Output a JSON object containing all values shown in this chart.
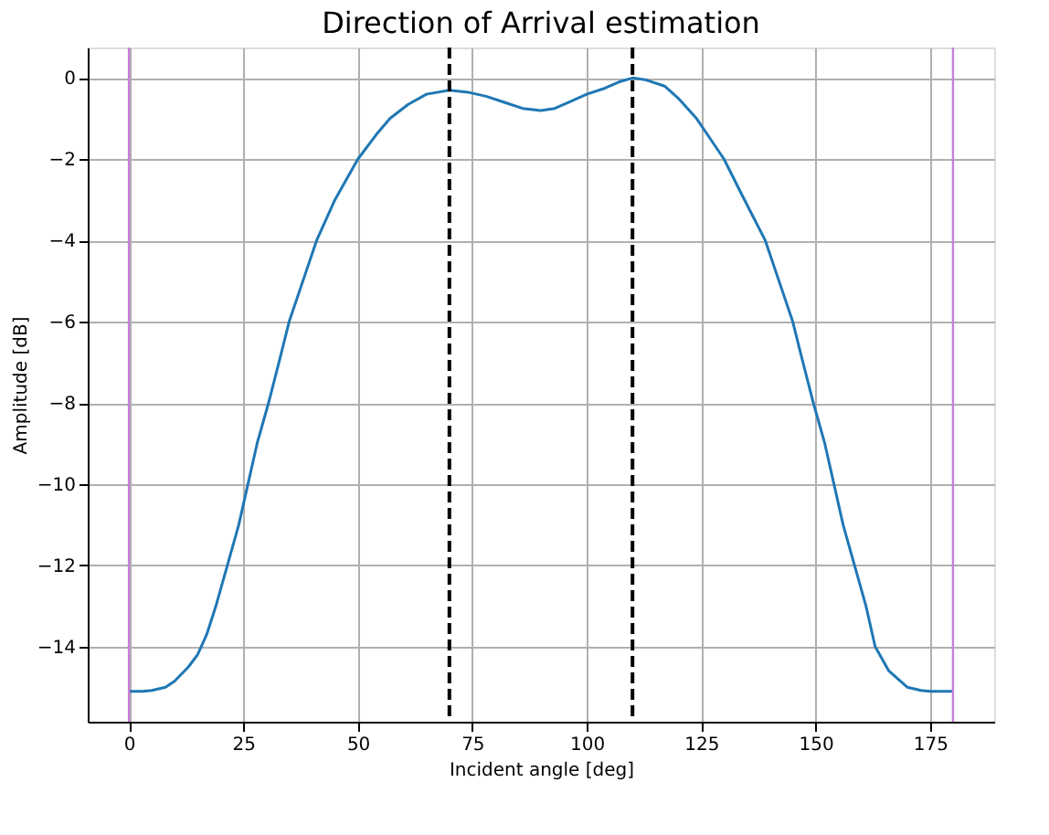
{
  "chart_data": {
    "type": "line",
    "title": "Direction of Arrival estimation",
    "xlabel": "Incident angle [deg]",
    "ylabel": "Amplitude [dB]",
    "x": [
      0,
      3,
      5,
      8,
      10,
      13,
      15,
      17,
      19,
      21.5,
      24,
      26,
      28,
      30.5,
      33,
      35,
      38,
      41,
      45,
      50,
      54,
      57,
      61,
      65,
      70,
      74,
      78,
      82,
      86,
      90,
      93,
      96,
      100,
      104,
      107,
      110,
      113,
      117,
      120,
      124,
      127,
      130,
      134,
      139,
      142,
      145,
      147,
      149.5,
      152,
      154,
      156,
      158.5,
      161,
      163,
      166,
      170,
      173,
      175,
      180
    ],
    "series": [
      {
        "color": "#1f77b4",
        "values": [
          -15.1,
          -15.1,
          -15.08,
          -15.0,
          -14.85,
          -14.5,
          -14.2,
          -13.7,
          -13.0,
          -12.0,
          -11.0,
          -10.0,
          -9.0,
          -8.0,
          -6.9,
          -6.0,
          -5.0,
          -4.0,
          -3.0,
          -2.0,
          -1.4,
          -1.0,
          -0.65,
          -0.4,
          -0.3,
          -0.35,
          -0.45,
          -0.6,
          -0.75,
          -0.8,
          -0.75,
          -0.6,
          -0.4,
          -0.25,
          -0.1,
          0.0,
          -0.05,
          -0.2,
          -0.5,
          -1.0,
          -1.5,
          -2.0,
          -2.9,
          -4.0,
          -5.0,
          -6.0,
          -6.9,
          -8.0,
          -9.0,
          -10.0,
          -11.0,
          -12.0,
          -13.0,
          -14.0,
          -14.6,
          -15.0,
          -15.08,
          -15.1,
          -15.1
        ]
      }
    ],
    "xlim": [
      -9,
      189
    ],
    "ylim": [
      -15.85,
      0.75
    ],
    "xticks": [
      0,
      25,
      50,
      75,
      100,
      125,
      150,
      175
    ],
    "yticks": [
      -14,
      -12,
      -10,
      -8,
      -6,
      -4,
      -2,
      0
    ],
    "grid": true,
    "marker": "none",
    "line_style": "solid",
    "ref_lines": [
      {
        "axis": "x",
        "value": 70,
        "color": "#000000",
        "line_style": "dashed"
      },
      {
        "axis": "x",
        "value": 110,
        "color": "#000000",
        "line_style": "dashed"
      },
      {
        "axis": "x",
        "value": 0,
        "color": "#c87fd8",
        "line_style": "solid"
      },
      {
        "axis": "x",
        "value": 180,
        "color": "#c87fd8",
        "line_style": "solid"
      }
    ]
  }
}
